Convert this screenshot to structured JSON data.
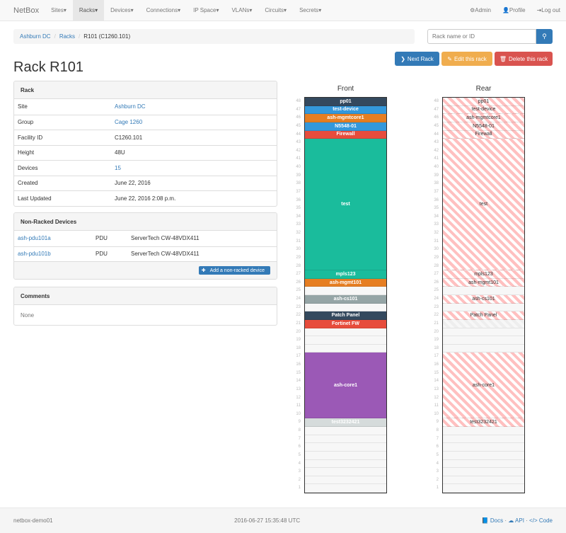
{
  "navbar": {
    "brand": "NetBox",
    "items": [
      "Sites",
      "Racks",
      "Devices",
      "Connections",
      "IP Space",
      "VLANs",
      "Circuits",
      "Secrets"
    ],
    "active": "Racks",
    "right": [
      {
        "icon": "gear-icon",
        "label": "Admin"
      },
      {
        "icon": "user-icon",
        "label": "Profile"
      },
      {
        "icon": "logout-icon",
        "label": "Log out"
      }
    ]
  },
  "breadcrumb": [
    "Ashburn DC",
    "Racks",
    "R101 (C1260.101)"
  ],
  "search": {
    "placeholder": "Rack name or ID"
  },
  "buttons": {
    "next": "Next Rack",
    "edit": "Edit this rack",
    "delete": "Delete this rack"
  },
  "title": "Rack R101",
  "rack_panel": {
    "heading": "Rack",
    "rows": [
      {
        "label": "Site",
        "value": "Ashburn DC",
        "link": true
      },
      {
        "label": "Group",
        "value": "Cage 1260",
        "link": true
      },
      {
        "label": "Facility ID",
        "value": "C1260.101"
      },
      {
        "label": "Height",
        "value": "48U"
      },
      {
        "label": "Devices",
        "value": "15",
        "link": true
      },
      {
        "label": "Created",
        "value": "June 22, 2016"
      },
      {
        "label": "Last Updated",
        "value": "June 22, 2016 2:08 p.m."
      }
    ]
  },
  "nonracked": {
    "heading": "Non-Racked Devices",
    "rows": [
      {
        "name": "ash-pdu101a",
        "role": "PDU",
        "type": "ServerTech CW-48VDX411"
      },
      {
        "name": "ash-pdu101b",
        "role": "PDU",
        "type": "ServerTech CW-48VDX411"
      }
    ],
    "add_label": "Add a non-racked device"
  },
  "comments": {
    "heading": "Comments",
    "text": "None"
  },
  "rack": {
    "front_label": "Front",
    "rear_label": "Rear",
    "height": 48,
    "devices": [
      {
        "name": "pp01",
        "top": 48,
        "units": 1,
        "color": "#34495e"
      },
      {
        "name": "test-device",
        "top": 47,
        "units": 1,
        "color": "#3498db"
      },
      {
        "name": "ash-mgmtcore1",
        "top": 46,
        "units": 1,
        "color": "#e67e22"
      },
      {
        "name": "N5548-01",
        "top": 45,
        "units": 1,
        "color": "#3498db"
      },
      {
        "name": "Firewall",
        "top": 44,
        "units": 1,
        "color": "#e74c3c"
      },
      {
        "name": "test",
        "top": 43,
        "units": 16,
        "color": "#1abc9c"
      },
      {
        "name": "mpls123",
        "top": 27,
        "units": 1,
        "color": "#1abc9c"
      },
      {
        "name": "ash-mgmt101",
        "top": 26,
        "units": 1,
        "color": "#e67e22"
      },
      {
        "name": "ash-cs101",
        "top": 24,
        "units": 1,
        "color": "#95a5a6"
      },
      {
        "name": "Patch Panel",
        "top": 22,
        "units": 1,
        "color": "#34495e"
      },
      {
        "name": "Fortinet FW",
        "top": 21,
        "units": 1,
        "color": "#e74c3c",
        "front_only": true
      },
      {
        "name": "ash-core1",
        "top": 17,
        "units": 8,
        "color": "#9b59b6"
      },
      {
        "name": "test3232421",
        "top": 9,
        "units": 1,
        "color": "#d5dbdb"
      }
    ]
  },
  "footer": {
    "host": "netbox-demo01",
    "time": "2016-06-27 15:35:48 UTC",
    "links": [
      "Docs",
      "API",
      "Code"
    ]
  }
}
